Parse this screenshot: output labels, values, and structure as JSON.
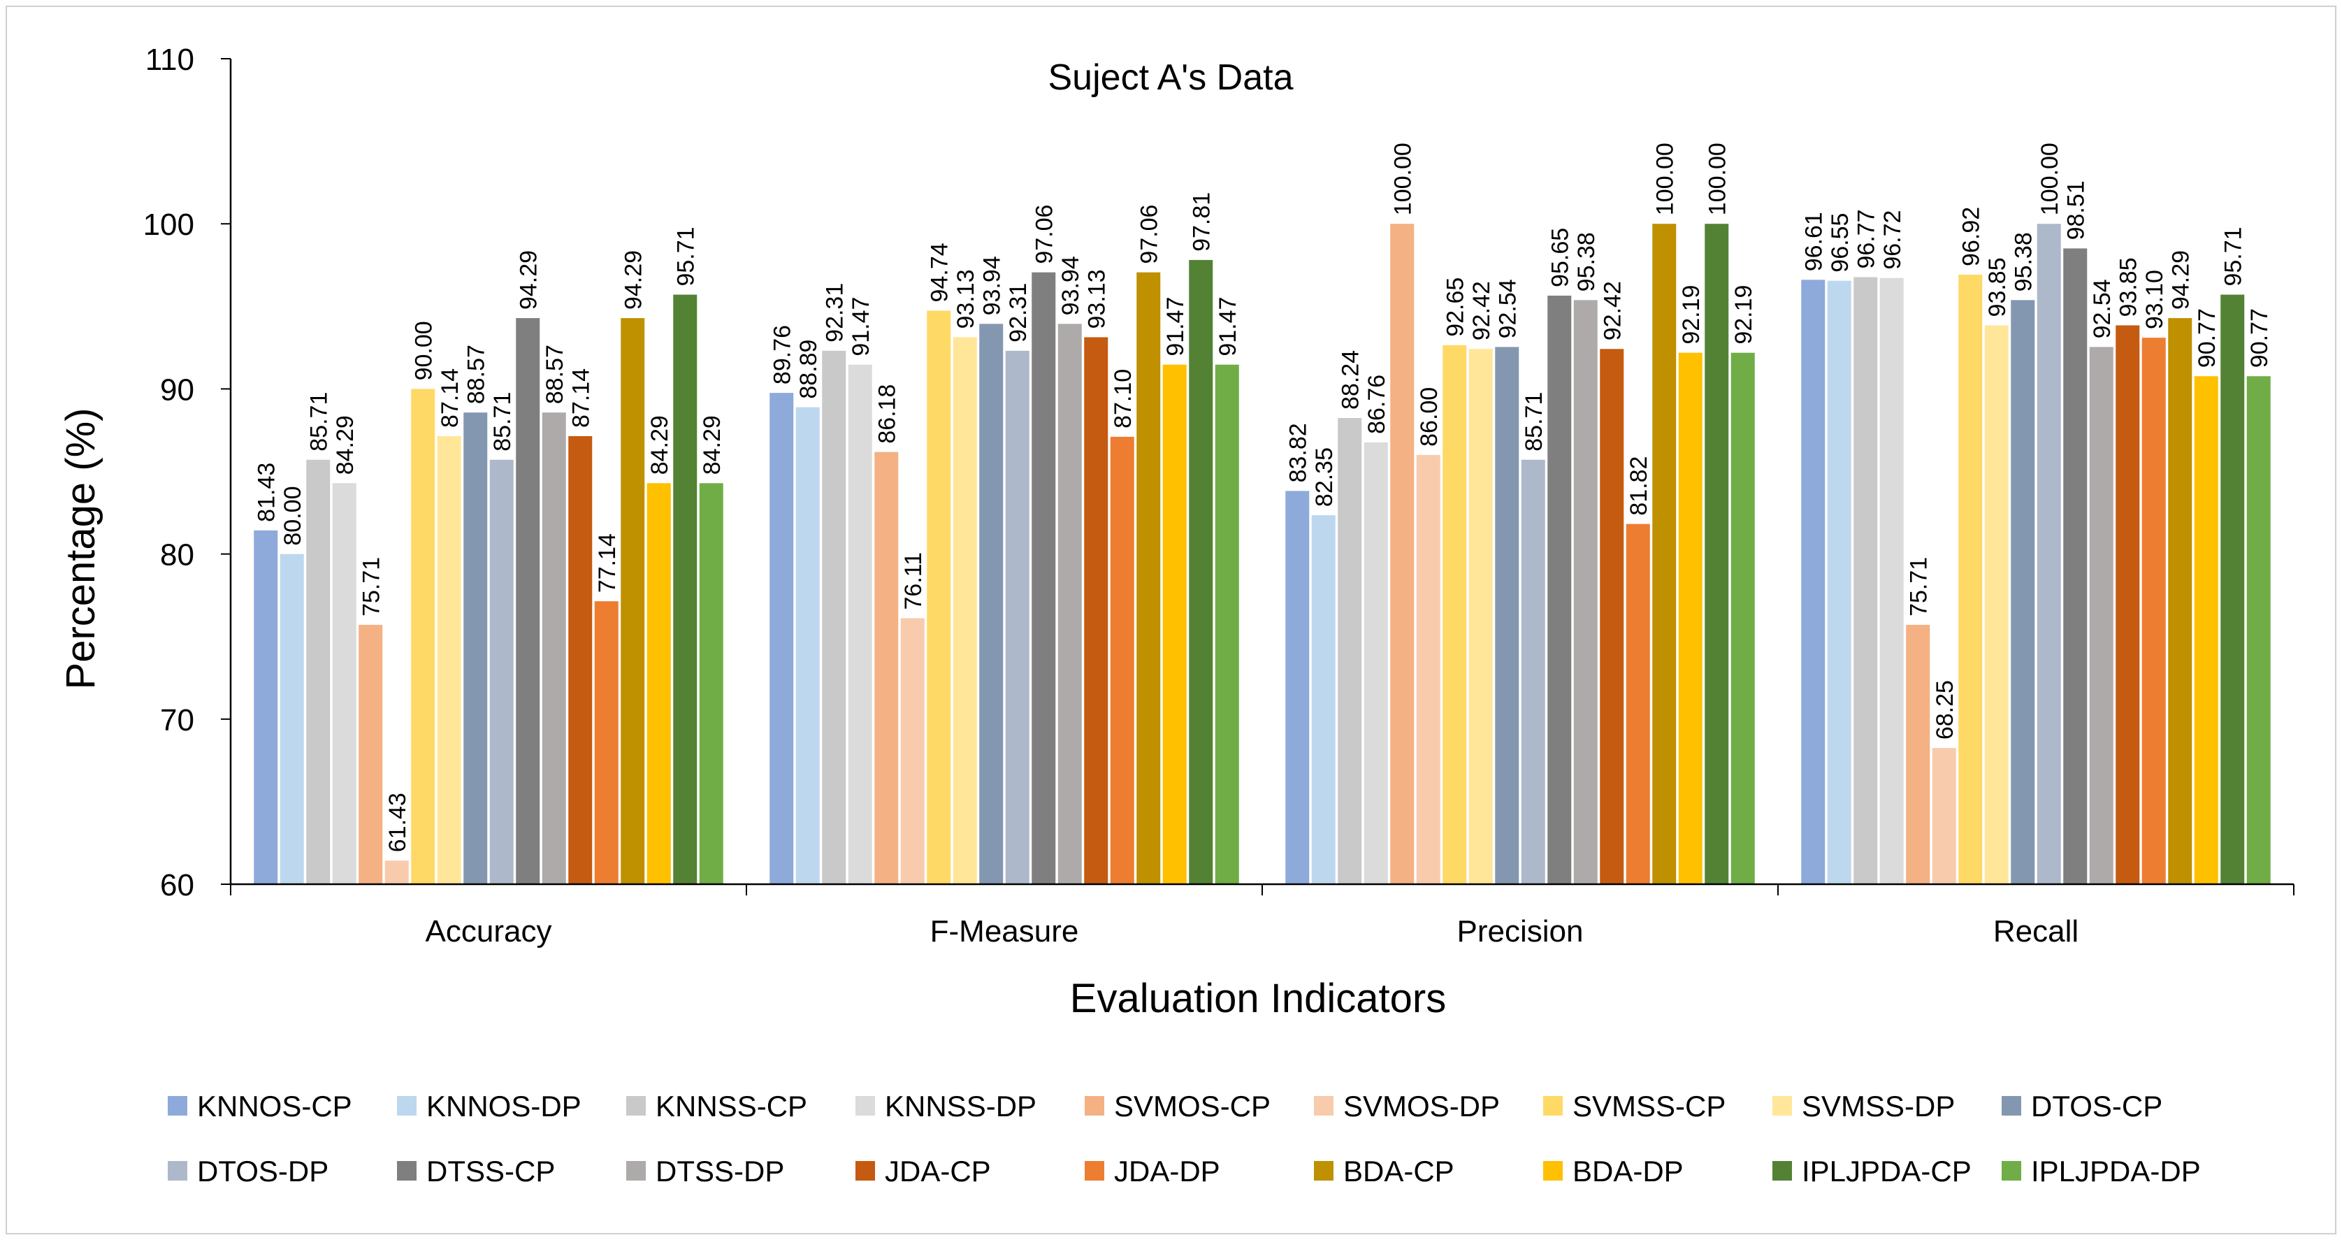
{
  "chart_data": {
    "type": "bar",
    "title": "Suject A's Data",
    "xlabel": "Evaluation Indicators",
    "ylabel": "Percentage (%)",
    "ylim": [
      60,
      110
    ],
    "yticks": [
      "60",
      "70",
      "80",
      "90",
      "100",
      "110"
    ],
    "grid": false,
    "legend_position": "bottom",
    "categories": [
      "Accuracy",
      "F-Measure",
      "Precision",
      "Recall"
    ],
    "series": [
      {
        "name": "KNNOS-CP",
        "color": "#8eaadb",
        "values": [
          81.43,
          89.76,
          83.82,
          96.61
        ],
        "labels": [
          "81.43",
          "89.76",
          "83.82",
          "96.61"
        ]
      },
      {
        "name": "KNNOS-DP",
        "color": "#bdd7ee",
        "values": [
          80.0,
          88.89,
          82.35,
          96.55
        ],
        "labels": [
          "80.00",
          "88.89",
          "82.35",
          "96.55"
        ]
      },
      {
        "name": "KNNSS-CP",
        "color": "#c9c9c9",
        "values": [
          85.71,
          92.31,
          88.24,
          96.77
        ],
        "labels": [
          "85.71",
          "92.31",
          "88.24",
          "96.77"
        ]
      },
      {
        "name": "KNNSS-DP",
        "color": "#dbdbdb",
        "values": [
          84.29,
          91.47,
          86.76,
          96.72
        ],
        "labels": [
          "84.29",
          "91.47",
          "86.76",
          "96.72"
        ]
      },
      {
        "name": "SVMOS-CP",
        "color": "#f4b183",
        "values": [
          75.71,
          86.18,
          100.0,
          75.71
        ],
        "labels": [
          "75.71",
          "86.18",
          "100.00",
          "75.71"
        ]
      },
      {
        "name": "SVMOS-DP",
        "color": "#f8cbad",
        "values": [
          61.43,
          76.11,
          86.0,
          68.25
        ],
        "labels": [
          "61.43",
          "76.11",
          "86.00",
          "68.25"
        ]
      },
      {
        "name": "SVMSS-CP",
        "color": "#ffd966",
        "values": [
          90.0,
          94.74,
          92.65,
          96.92
        ],
        "labels": [
          "90.00",
          "94.74",
          "92.65",
          "96.92"
        ]
      },
      {
        "name": "SVMSS-DP",
        "color": "#ffe699",
        "values": [
          87.14,
          93.13,
          92.42,
          93.85
        ],
        "labels": [
          "87.14",
          "93.13",
          "92.42",
          "93.85"
        ]
      },
      {
        "name": "DTOS-CP",
        "color": "#8497b0",
        "values": [
          88.57,
          93.94,
          92.54,
          95.38
        ],
        "labels": [
          "88.57",
          "93.94",
          "92.54",
          "95.38"
        ]
      },
      {
        "name": "DTOS-DP",
        "color": "#adb9ca",
        "values": [
          85.71,
          92.31,
          85.71,
          100.0
        ],
        "labels": [
          "85.71",
          "92.31",
          "85.71",
          "100.00"
        ]
      },
      {
        "name": "DTSS-CP",
        "color": "#7f7f7f",
        "values": [
          94.29,
          97.06,
          95.65,
          98.51
        ],
        "labels": [
          "94.29",
          "97.06",
          "95.65",
          "98.51"
        ]
      },
      {
        "name": "DTSS-DP",
        "color": "#aeaaaa",
        "values": [
          88.57,
          93.94,
          95.38,
          92.54
        ],
        "labels": [
          "88.57",
          "93.94",
          "95.38",
          "92.54"
        ]
      },
      {
        "name": "JDA-CP",
        "color": "#c55a11",
        "values": [
          87.14,
          93.13,
          92.42,
          93.85
        ],
        "labels": [
          "87.14",
          "93.13",
          "92.42",
          "93.85"
        ]
      },
      {
        "name": "JDA-DP",
        "color": "#ed7d31",
        "values": [
          77.14,
          87.1,
          81.82,
          93.1
        ],
        "labels": [
          "77.14",
          "87.10",
          "81.82",
          "93.10"
        ]
      },
      {
        "name": "BDA-CP",
        "color": "#bf9000",
        "values": [
          94.29,
          97.06,
          100.0,
          94.29
        ],
        "labels": [
          "94.29",
          "97.06",
          "100.00",
          "94.29"
        ]
      },
      {
        "name": "BDA-DP",
        "color": "#ffc000",
        "values": [
          84.29,
          91.47,
          92.19,
          90.77
        ],
        "labels": [
          "84.29",
          "91.47",
          "92.19",
          "90.77"
        ]
      },
      {
        "name": "IPLJPDA-CP",
        "color": "#548235",
        "values": [
          95.71,
          97.81,
          100.0,
          95.71
        ],
        "labels": [
          "95.71",
          "97.81",
          "100.00",
          "95.71"
        ]
      },
      {
        "name": "IPLJPDA-DP",
        "color": "#70ad47",
        "values": [
          84.29,
          91.47,
          92.19,
          90.77
        ],
        "labels": [
          "84.29",
          "91.47",
          "92.19",
          "90.77"
        ]
      }
    ]
  }
}
